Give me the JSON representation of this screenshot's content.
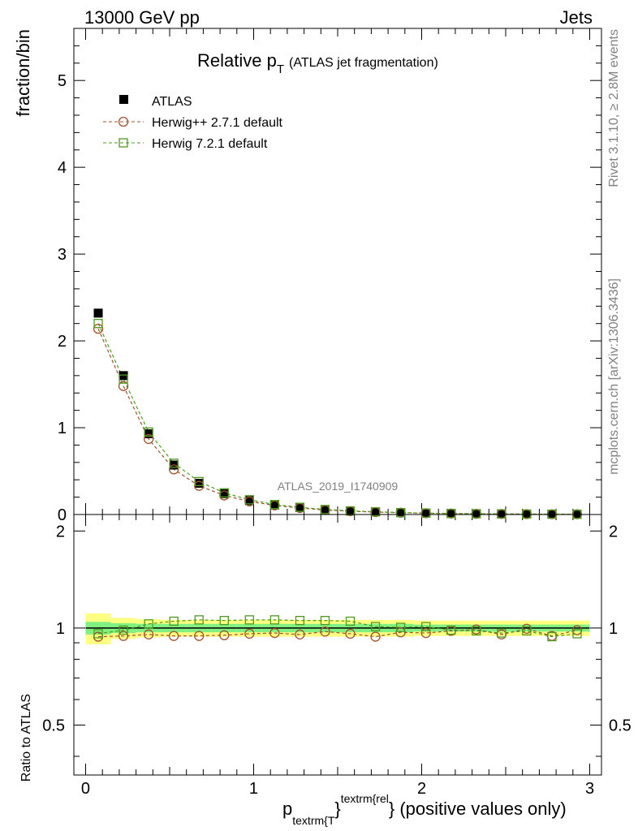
{
  "header": {
    "left": "13000 GeV pp",
    "right": "Jets"
  },
  "side": {
    "rivet": "Rivet 3.1.10, ≥ 2.8M events",
    "mcplots": "mcplots.cern.ch [arXiv:1306.3436]"
  },
  "chart_data": {
    "type": "scatter",
    "title_main": "Relative p",
    "title_sub": "T",
    "title_paren": "(ATLAS jet fragmentation)",
    "watermark": "ATLAS_2019_I1740909",
    "ylabel_top": "fraction/bin",
    "ylabel_bottom": "Ratio to ATLAS",
    "xlabel": {
      "p": "p",
      "sub": "textrm{T",
      "brace": "}",
      "sup": "textrm{rel",
      "tail": "} (positive values only)"
    },
    "xlim": [
      -0.07,
      3.07
    ],
    "ylim_top": [
      0,
      5.6
    ],
    "ylim_bottom": [
      0.35,
      2.25
    ],
    "ratio_log_scale": true,
    "x_ticks": [
      "0",
      "1",
      "2",
      "3"
    ],
    "y_ticks_top": [
      "0",
      "1",
      "2",
      "3",
      "4",
      "5"
    ],
    "y_ticks_bottom": [
      "0.5",
      "1",
      "2"
    ],
    "x": [
      0.075,
      0.225,
      0.375,
      0.525,
      0.675,
      0.825,
      0.975,
      1.125,
      1.275,
      1.425,
      1.575,
      1.725,
      1.875,
      2.025,
      2.175,
      2.325,
      2.475,
      2.625,
      2.775,
      2.925
    ],
    "legend": [
      {
        "name": "ATLAS",
        "color": "#000000",
        "marker": "filled-square"
      },
      {
        "name": "Herwig++ 2.7.1 default",
        "color": "#a0522d",
        "marker": "open-circle"
      },
      {
        "name": "Herwig 7.2.1 default",
        "color": "#4f9a1f",
        "marker": "open-square"
      }
    ],
    "series": [
      {
        "name": "ATLAS",
        "values": [
          2.32,
          1.6,
          0.93,
          0.57,
          0.36,
          0.24,
          0.16,
          0.11,
          0.08,
          0.055,
          0.04,
          0.03,
          0.022,
          0.016,
          0.012,
          0.009,
          0.007,
          0.005,
          0.004,
          0.003
        ]
      },
      {
        "name": "Herwig++ 2.7.1 default",
        "values": [
          2.14,
          1.48,
          0.87,
          0.52,
          0.33,
          0.22,
          0.15,
          0.105,
          0.075,
          0.052,
          0.038,
          0.028,
          0.021,
          0.015,
          0.011,
          0.0085,
          0.0066,
          0.0048,
          0.0038,
          0.0029
        ]
      },
      {
        "name": "Herwig 7.2.1 default",
        "values": [
          2.2,
          1.56,
          0.95,
          0.59,
          0.38,
          0.25,
          0.17,
          0.115,
          0.083,
          0.058,
          0.042,
          0.031,
          0.022,
          0.016,
          0.012,
          0.009,
          0.007,
          0.005,
          0.004,
          0.003
        ]
      }
    ],
    "ratio_series": [
      {
        "name": "Herwig++ 2.7.1 default",
        "values": [
          0.94,
          0.945,
          0.955,
          0.945,
          0.945,
          0.95,
          0.96,
          0.965,
          0.955,
          0.975,
          0.96,
          0.94,
          0.97,
          0.965,
          0.98,
          0.99,
          0.955,
          0.995,
          0.945,
          0.985
        ]
      },
      {
        "name": "Herwig 7.2.1 default",
        "values": [
          0.96,
          0.985,
          1.03,
          1.05,
          1.06,
          1.055,
          1.06,
          1.06,
          1.055,
          1.055,
          1.05,
          1.01,
          1.005,
          1.01,
          0.985,
          0.98,
          0.965,
          0.98,
          0.94,
          0.96
        ]
      }
    ],
    "ratio_bands": {
      "edges": [
        0.0,
        0.15,
        0.3,
        0.45,
        0.6,
        0.75,
        0.9,
        1.05,
        1.2,
        1.35,
        1.5,
        1.65,
        1.8,
        1.95,
        2.1,
        2.25,
        2.4,
        2.55,
        2.7,
        2.85,
        3.0
      ],
      "yellow": [
        0.11,
        0.075,
        0.065,
        0.06,
        0.06,
        0.06,
        0.06,
        0.06,
        0.06,
        0.06,
        0.06,
        0.06,
        0.06,
        0.055,
        0.055,
        0.055,
        0.055,
        0.055,
        0.055,
        0.055
      ],
      "green": [
        0.045,
        0.035,
        0.03,
        0.03,
        0.03,
        0.03,
        0.03,
        0.03,
        0.03,
        0.03,
        0.03,
        0.03,
        0.03,
        0.025,
        0.025,
        0.025,
        0.025,
        0.025,
        0.025,
        0.025
      ],
      "yellow_color": "#ffff80",
      "green_color": "#80f080"
    }
  }
}
